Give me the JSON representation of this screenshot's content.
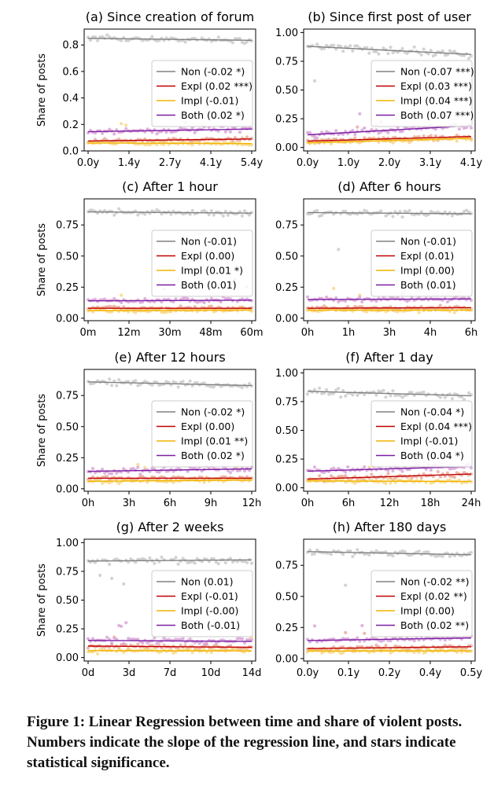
{
  "figure": {
    "caption": "Figure 1: Linear Regression between time and share of violent posts. Numbers indicate the slope of the regression line, and stars indicate statistical significance."
  },
  "series_colors": {
    "Non": "#808080",
    "Expl": "#c00000",
    "Impl": "#f2b400",
    "Both": "#7b1fa2"
  },
  "scatter_colors": {
    "Non": "#c4c4c4",
    "Expl": "#e8a090",
    "Impl": "#f7d37a",
    "Both": "#d49ad4"
  },
  "chart_data": [
    {
      "type": "scatter",
      "title": "(a) Since creation of forum",
      "ylabel": "Share of posts",
      "xlabel": "",
      "xticks": [
        "0.0y",
        "1.4y",
        "2.7y",
        "4.1y",
        "5.4y"
      ],
      "yticks": [
        "0.0",
        "0.2",
        "0.4",
        "0.6",
        "0.8"
      ],
      "ylim": [
        0,
        0.92
      ],
      "legend_position": "center-right",
      "series": [
        {
          "name": "Non (-0.02 *)",
          "line": [
            0.85,
            0.835
          ],
          "spread": 0.03
        },
        {
          "name": "Expl (0.02 ***)",
          "line": [
            0.075,
            0.09
          ],
          "spread": 0.02
        },
        {
          "name": "Impl (-0.01)",
          "line": [
            0.06,
            0.055
          ],
          "spread": 0.02
        },
        {
          "name": "Both (0.02 *)",
          "line": [
            0.145,
            0.165
          ],
          "spread": 0.03
        }
      ]
    },
    {
      "type": "scatter",
      "title": "(b) Since first post of user",
      "ylabel": "",
      "xlabel": "",
      "xticks": [
        "0.0y",
        "1.0y",
        "2.0y",
        "3.1y",
        "4.1y"
      ],
      "yticks": [
        "0.00",
        "0.25",
        "0.50",
        "0.75",
        "1.00"
      ],
      "ylim": [
        -0.03,
        1.03
      ],
      "legend_position": "center-right",
      "series": [
        {
          "name": "Non (-0.07 ***)",
          "line": [
            0.88,
            0.81
          ],
          "spread": 0.05
        },
        {
          "name": "Expl (0.03 ***)",
          "line": [
            0.055,
            0.095
          ],
          "spread": 0.03
        },
        {
          "name": "Impl (0.04 ***)",
          "line": [
            0.04,
            0.08
          ],
          "spread": 0.03
        },
        {
          "name": "Both (0.07 ***)",
          "line": [
            0.11,
            0.19
          ],
          "spread": 0.04
        }
      ]
    },
    {
      "type": "scatter",
      "title": "(c) After 1 hour",
      "ylabel": "Share of posts",
      "xlabel": "",
      "xticks": [
        "0m",
        "12m",
        "30m",
        "48m",
        "60m"
      ],
      "yticks": [
        "0.00",
        "0.25",
        "0.50",
        "0.75"
      ],
      "ylim": [
        -0.02,
        0.96
      ],
      "legend_position": "center-right",
      "series": [
        {
          "name": "Non (-0.01)",
          "line": [
            0.855,
            0.845
          ],
          "spread": 0.035
        },
        {
          "name": "Expl (0.00)",
          "line": [
            0.08,
            0.08
          ],
          "spread": 0.025
        },
        {
          "name": "Impl (0.01 *)",
          "line": [
            0.06,
            0.065
          ],
          "spread": 0.025
        },
        {
          "name": "Both (0.01)",
          "line": [
            0.14,
            0.145
          ],
          "spread": 0.03
        }
      ]
    },
    {
      "type": "scatter",
      "title": "(d) After 6 hours",
      "ylabel": "",
      "xlabel": "",
      "xticks": [
        "0h",
        "1h",
        "3h",
        "4h",
        "6h"
      ],
      "yticks": [
        "0.00",
        "0.25",
        "0.50",
        "0.75"
      ],
      "ylim": [
        -0.02,
        0.96
      ],
      "legend_position": "center-right",
      "series": [
        {
          "name": "Non (-0.01)",
          "line": [
            0.85,
            0.84
          ],
          "spread": 0.035
        },
        {
          "name": "Expl (0.01)",
          "line": [
            0.08,
            0.085
          ],
          "spread": 0.025
        },
        {
          "name": "Impl (0.00)",
          "line": [
            0.065,
            0.065
          ],
          "spread": 0.025
        },
        {
          "name": "Both (0.01)",
          "line": [
            0.15,
            0.155
          ],
          "spread": 0.03
        }
      ]
    },
    {
      "type": "scatter",
      "title": "(e) After 12 hours",
      "ylabel": "Share of posts",
      "xlabel": "",
      "xticks": [
        "0h",
        "3h",
        "6h",
        "9h",
        "12h"
      ],
      "yticks": [
        "0.00",
        "0.25",
        "0.50",
        "0.75"
      ],
      "ylim": [
        -0.02,
        0.96
      ],
      "legend_position": "center-right",
      "series": [
        {
          "name": "Non (-0.02 *)",
          "line": [
            0.86,
            0.83
          ],
          "spread": 0.035
        },
        {
          "name": "Expl (0.00)",
          "line": [
            0.085,
            0.085
          ],
          "spread": 0.025
        },
        {
          "name": "Impl (0.01 **)",
          "line": [
            0.06,
            0.07
          ],
          "spread": 0.025
        },
        {
          "name": "Both (0.02 *)",
          "line": [
            0.14,
            0.16
          ],
          "spread": 0.035
        }
      ]
    },
    {
      "type": "scatter",
      "title": "(f) After 1 day",
      "ylabel": "",
      "xlabel": "",
      "xticks": [
        "0h",
        "6h",
        "12h",
        "18h",
        "24h"
      ],
      "yticks": [
        "0.00",
        "0.25",
        "0.50",
        "0.75",
        "1.00"
      ],
      "ylim": [
        -0.03,
        1.03
      ],
      "legend_position": "center-right",
      "series": [
        {
          "name": "Non (-0.04 *)",
          "line": [
            0.84,
            0.8
          ],
          "spread": 0.05
        },
        {
          "name": "Expl (0.04 ***)",
          "line": [
            0.075,
            0.12
          ],
          "spread": 0.035
        },
        {
          "name": "Impl (-0.01)",
          "line": [
            0.06,
            0.055
          ],
          "spread": 0.03
        },
        {
          "name": "Both (0.04 *)",
          "line": [
            0.145,
            0.185
          ],
          "spread": 0.04
        }
      ]
    },
    {
      "type": "scatter",
      "title": "(g) After 2 weeks",
      "ylabel": "Share of posts",
      "xlabel": "",
      "xticks": [
        "0d",
        "3d",
        "7d",
        "10d",
        "14d"
      ],
      "yticks": [
        "0.00",
        "0.25",
        "0.50",
        "0.75",
        "1.00"
      ],
      "ylim": [
        -0.03,
        1.03
      ],
      "legend_position": "center-right",
      "series": [
        {
          "name": "Non (0.01)",
          "line": [
            0.84,
            0.85
          ],
          "spread": 0.04
        },
        {
          "name": "Expl (-0.01)",
          "line": [
            0.1,
            0.09
          ],
          "spread": 0.03
        },
        {
          "name": "Impl (-0.00)",
          "line": [
            0.06,
            0.058
          ],
          "spread": 0.03
        },
        {
          "name": "Both (-0.01)",
          "line": [
            0.15,
            0.14
          ],
          "spread": 0.04
        }
      ]
    },
    {
      "type": "scatter",
      "title": "(h) After 180 days",
      "ylabel": "",
      "xlabel": "",
      "xticks": [
        "0.0y",
        "0.1y",
        "0.2y",
        "0.4y",
        "0.5y"
      ],
      "yticks": [
        "0.00",
        "0.25",
        "0.50",
        "0.75"
      ],
      "ylim": [
        -0.02,
        0.96
      ],
      "legend_position": "center-right",
      "series": [
        {
          "name": "Non (-0.02 **)",
          "line": [
            0.86,
            0.835
          ],
          "spread": 0.035
        },
        {
          "name": "Expl (0.02 **)",
          "line": [
            0.08,
            0.095
          ],
          "spread": 0.025
        },
        {
          "name": "Impl (0.00)",
          "line": [
            0.06,
            0.062
          ],
          "spread": 0.025
        },
        {
          "name": "Both (0.02 **)",
          "line": [
            0.145,
            0.165
          ],
          "spread": 0.03
        }
      ]
    }
  ]
}
